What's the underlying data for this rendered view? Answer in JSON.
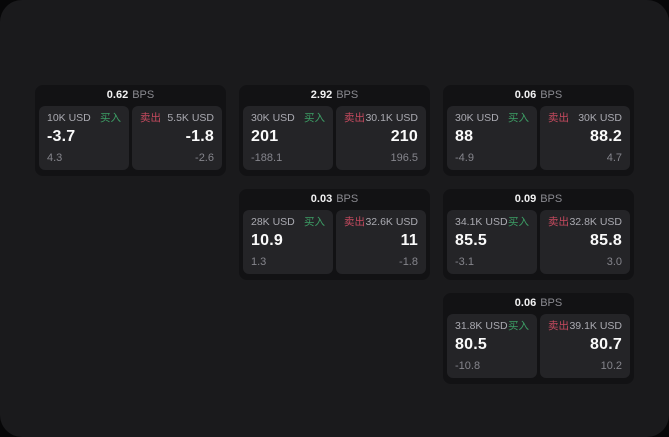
{
  "labels": {
    "bps": "BPS",
    "buy": "买入",
    "sell": "卖出"
  },
  "colors": {
    "page_bg": "#070708",
    "window_bg": "#1a1a1c",
    "card_bg": "#121214",
    "panel_bg": "#242427",
    "buy_color": "#3d9f66",
    "sell_color": "#c64a5f"
  },
  "cards": [
    {
      "bps": "0.62",
      "buy": {
        "amount": "10K USD",
        "value": "-3.7",
        "sub": "4.3"
      },
      "sell": {
        "amount": "5.5K USD",
        "value": "-1.8",
        "sub": "-2.6"
      }
    },
    {
      "bps": "2.92",
      "buy": {
        "amount": "30K USD",
        "value": "201",
        "sub": "-188.1"
      },
      "sell": {
        "amount": "30.1K USD",
        "value": "210",
        "sub": "196.5"
      }
    },
    {
      "bps": "0.06",
      "buy": {
        "amount": "30K USD",
        "value": "88",
        "sub": "-4.9"
      },
      "sell": {
        "amount": "30K USD",
        "value": "88.2",
        "sub": "4.7"
      }
    },
    {
      "bps": "0.03",
      "buy": {
        "amount": "28K USD",
        "value": "10.9",
        "sub": "1.3"
      },
      "sell": {
        "amount": "32.6K USD",
        "value": "11",
        "sub": "-1.8"
      }
    },
    {
      "bps": "0.09",
      "buy": {
        "amount": "34.1K USD",
        "value": "85.5",
        "sub": "-3.1"
      },
      "sell": {
        "amount": "32.8K USD",
        "value": "85.8",
        "sub": "3.0"
      }
    },
    {
      "bps": "0.06",
      "buy": {
        "amount": "31.8K USD",
        "value": "80.5",
        "sub": "-10.8"
      },
      "sell": {
        "amount": "39.1K USD",
        "value": "80.7",
        "sub": "10.2"
      }
    }
  ]
}
